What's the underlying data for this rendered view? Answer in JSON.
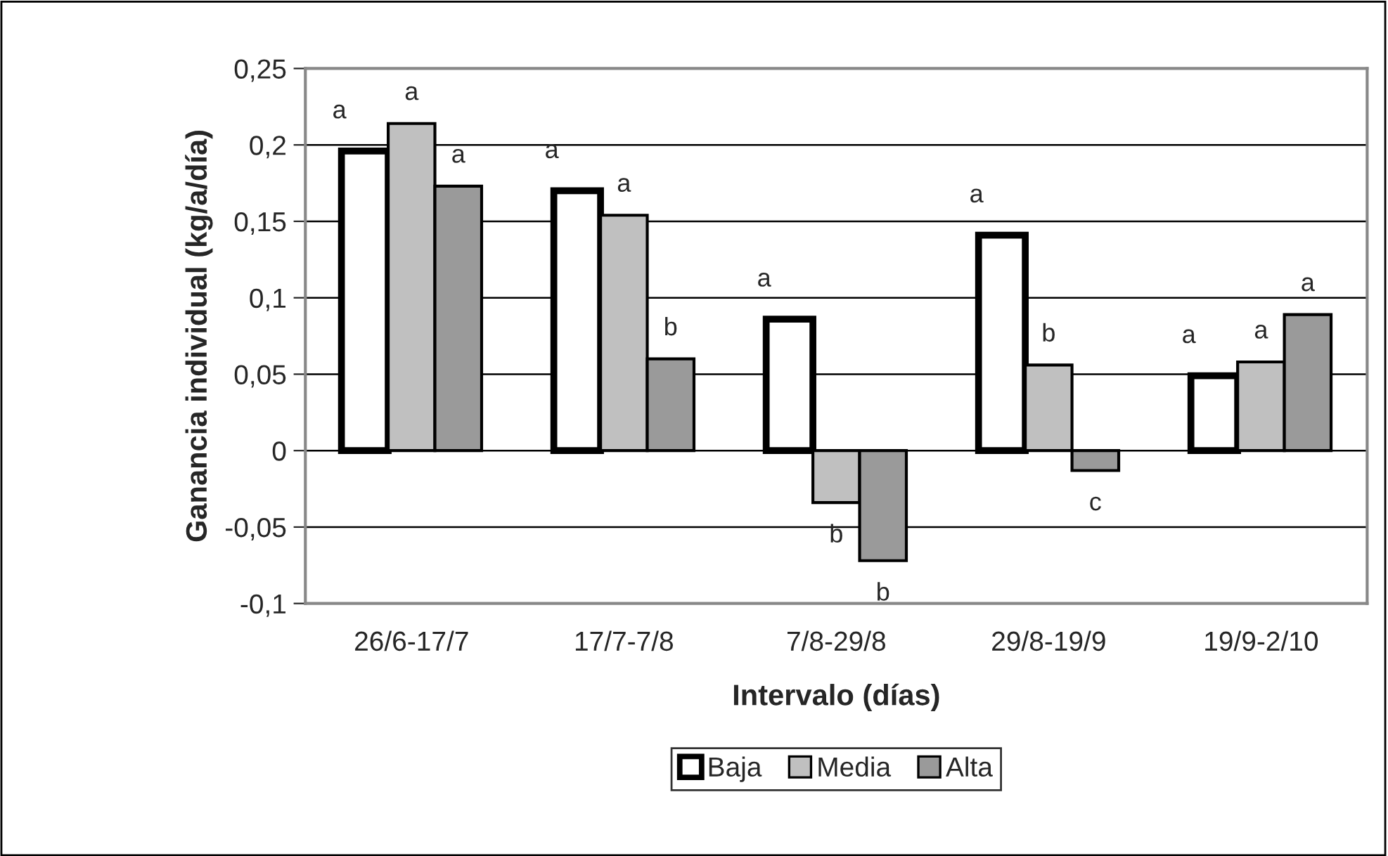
{
  "chart_data": {
    "type": "bar",
    "xlabel": "Intervalo (días)",
    "ylabel": "Ganancia individual (kg/a/día)",
    "categories": [
      "26/6-17/7",
      "17/7-7/8",
      "7/8-29/8",
      "29/8-19/9",
      "19/9-2/10"
    ],
    "series": [
      {
        "name": "Baja",
        "color": "#ffffff",
        "values": [
          0.196,
          0.17,
          0.086,
          0.141,
          0.049
        ],
        "value_labels": [
          "a",
          "a",
          "a",
          "a",
          "a"
        ]
      },
      {
        "name": "Media",
        "color": "#c0c0c0",
        "values": [
          0.214,
          0.154,
          -0.034,
          0.056,
          0.058
        ],
        "value_labels": [
          "a",
          "a",
          "b",
          "b",
          "a"
        ]
      },
      {
        "name": "Alta",
        "color": "#9a9a9a",
        "values": [
          0.173,
          0.06,
          -0.072,
          -0.013,
          0.089
        ],
        "value_labels": [
          "a",
          "b",
          "b",
          "c",
          "a"
        ]
      }
    ],
    "ylim": [
      -0.1,
      0.25
    ],
    "yticks": [
      {
        "value": -0.1,
        "label": "-0,1"
      },
      {
        "value": -0.05,
        "label": "-0,05"
      },
      {
        "value": 0,
        "label": "0"
      },
      {
        "value": 0.05,
        "label": "0,05"
      },
      {
        "value": 0.1,
        "label": "0,1"
      },
      {
        "value": 0.15,
        "label": "0,15"
      },
      {
        "value": 0.2,
        "label": "0,2"
      },
      {
        "value": 0.25,
        "label": "0,25"
      }
    ],
    "grid": "y",
    "legend": "bottom"
  }
}
